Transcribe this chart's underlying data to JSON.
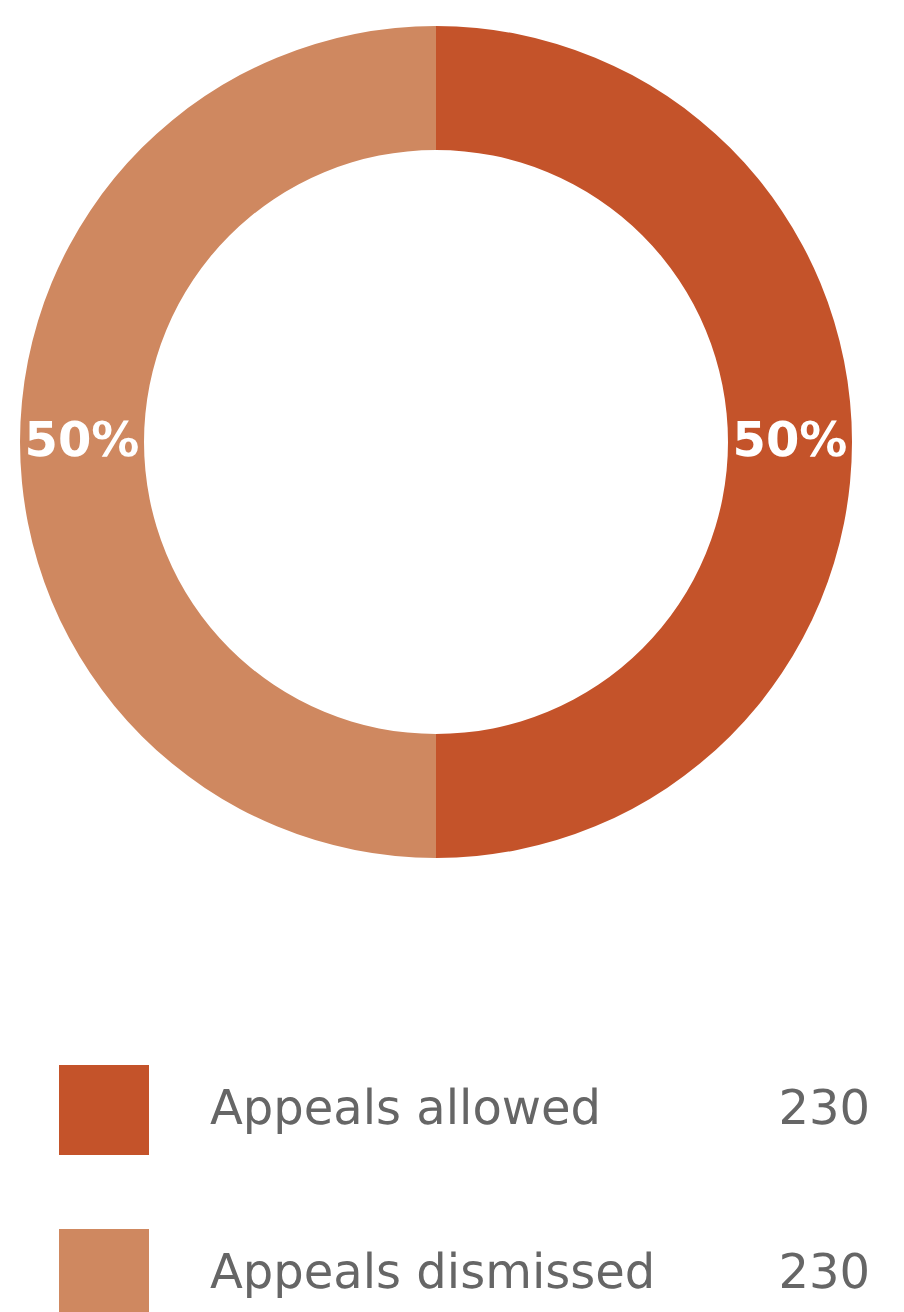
{
  "chart_data": {
    "type": "donut",
    "categories": [
      "Appeals allowed",
      "Appeals dismissed"
    ],
    "values": [
      50,
      50
    ],
    "colors": [
      "#c4532a",
      "#cf8860"
    ],
    "value_labels": [
      "50%",
      "50%"
    ],
    "annotations": [
      "230",
      "230"
    ],
    "legend": "bottom"
  }
}
